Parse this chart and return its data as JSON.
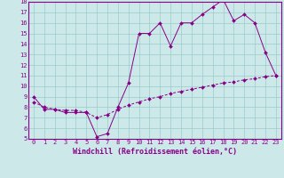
{
  "xlabel": "Windchill (Refroidissement éolien,°C)",
  "line1_x": [
    0,
    1,
    2,
    3,
    4,
    5,
    6,
    7,
    8,
    9,
    10,
    11,
    12,
    13,
    14,
    15,
    16,
    17,
    18,
    19,
    20,
    21,
    22,
    23
  ],
  "line1_y": [
    9.0,
    7.8,
    7.8,
    7.5,
    7.5,
    7.5,
    5.2,
    5.5,
    8.0,
    10.3,
    15.0,
    15.0,
    16.0,
    13.8,
    16.0,
    16.0,
    16.8,
    17.5,
    18.2,
    16.2,
    16.8,
    16.0,
    13.2,
    11.0
  ],
  "line2_x": [
    0,
    1,
    2,
    3,
    4,
    5,
    6,
    7,
    8,
    9,
    10,
    11,
    12,
    13,
    14,
    15,
    16,
    17,
    18,
    19,
    20,
    21,
    22,
    23
  ],
  "line2_y": [
    8.5,
    8.0,
    7.8,
    7.7,
    7.7,
    7.5,
    7.0,
    7.3,
    7.8,
    8.2,
    8.5,
    8.8,
    9.0,
    9.3,
    9.5,
    9.7,
    9.9,
    10.1,
    10.3,
    10.4,
    10.6,
    10.7,
    10.9,
    11.0
  ],
  "line_color": "#880088",
  "bg_color": "#cce8e8",
  "grid_color": "#99cccc",
  "marker": "D",
  "marker_size": 2.0,
  "line_width": 0.7,
  "xlim": [
    -0.5,
    23.5
  ],
  "ylim": [
    5,
    18
  ],
  "yticks": [
    5,
    6,
    7,
    8,
    9,
    10,
    11,
    12,
    13,
    14,
    15,
    16,
    17,
    18
  ],
  "xticks": [
    0,
    1,
    2,
    3,
    4,
    5,
    6,
    7,
    8,
    9,
    10,
    11,
    12,
    13,
    14,
    15,
    16,
    17,
    18,
    19,
    20,
    21,
    22,
    23
  ],
  "tick_fontsize": 5.0,
  "xlabel_fontsize": 6.0
}
